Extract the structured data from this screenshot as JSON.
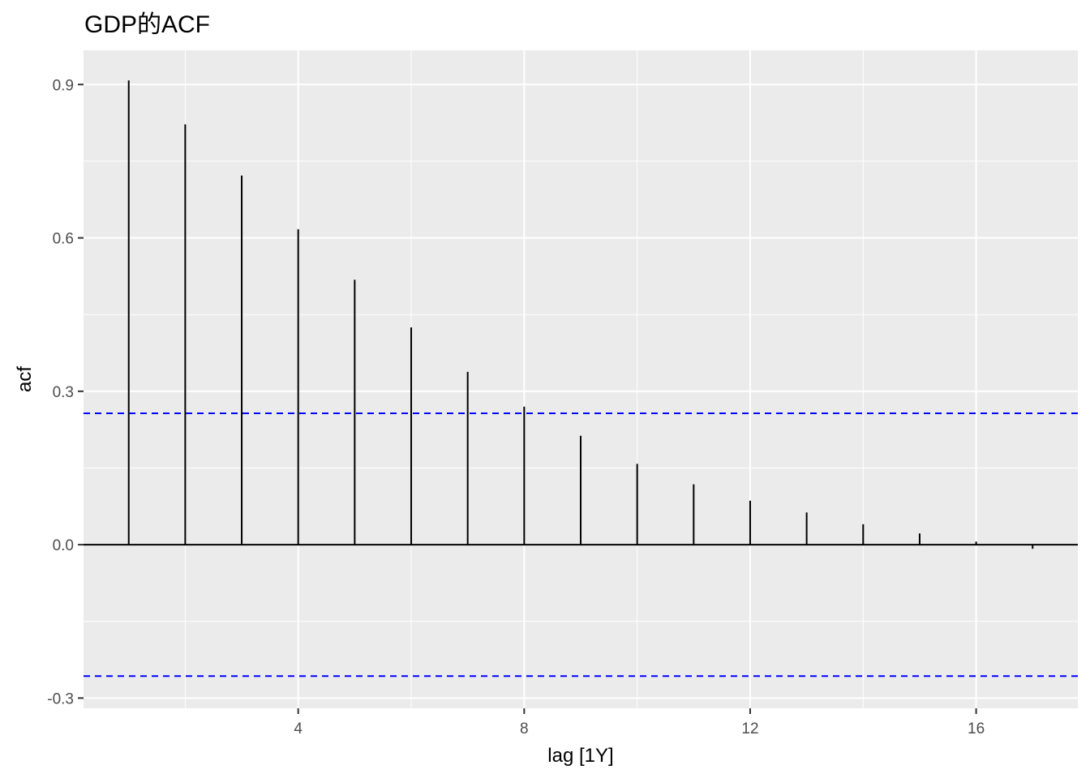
{
  "chart_data": {
    "type": "bar",
    "title": "GDP的ACF",
    "xlabel": "lag [1Y]",
    "ylabel": "acf",
    "x": [
      1,
      2,
      3,
      4,
      5,
      6,
      7,
      8,
      9,
      10,
      11,
      12,
      13,
      14,
      15,
      16,
      17
    ],
    "values": [
      0.908,
      0.822,
      0.722,
      0.617,
      0.518,
      0.425,
      0.338,
      0.27,
      0.213,
      0.158,
      0.118,
      0.086,
      0.063,
      0.04,
      0.022,
      0.006,
      -0.008
    ],
    "xlim": [
      0.2,
      17.8
    ],
    "ylim": [
      -0.32,
      0.967
    ],
    "xticks": [
      4,
      8,
      12,
      16
    ],
    "yticks": [
      -0.3,
      0.0,
      0.3,
      0.6,
      0.9
    ],
    "xtick_labels": [
      "4",
      "8",
      "12",
      "16"
    ],
    "ytick_labels": [
      "-0.3",
      "0.0",
      "0.3",
      "0.6",
      "0.9"
    ],
    "confidence_bounds": [
      0.257,
      -0.257
    ],
    "grid": true,
    "colors": {
      "panel": "#ebebeb",
      "grid": "#ffffff",
      "bar": "#000000",
      "bounds": "#0000ff"
    }
  }
}
